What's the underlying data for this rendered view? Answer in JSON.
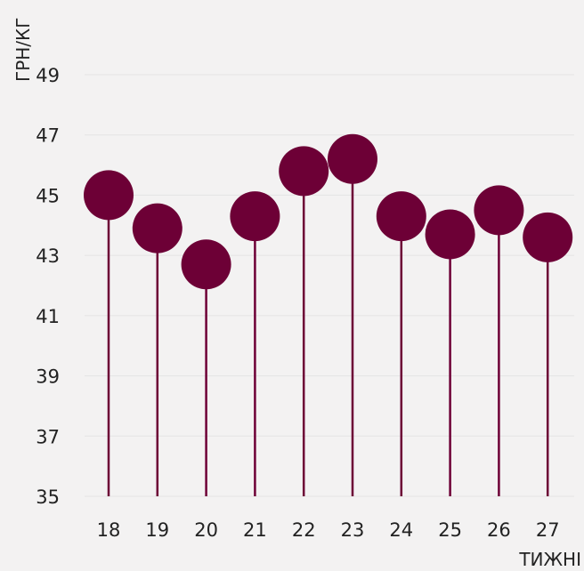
{
  "chart_data": {
    "type": "lollipop",
    "title": "",
    "xlabel": "ТИЖНІ",
    "ylabel": "ГРН/КГ",
    "ylim": [
      35,
      49
    ],
    "yticks": [
      35,
      37,
      39,
      41,
      43,
      45,
      47,
      49
    ],
    "categories": [
      "18",
      "19",
      "20",
      "21",
      "22",
      "23",
      "24",
      "25",
      "26",
      "27"
    ],
    "values": [
      45.0,
      43.9,
      42.7,
      44.3,
      45.8,
      46.2,
      44.3,
      43.7,
      44.5,
      43.6
    ],
    "grid": true,
    "colors": {
      "marker": "#6d0036",
      "stem": "#6d0036",
      "grid": "#e4e4e4",
      "background": "#f3f2f2"
    }
  }
}
